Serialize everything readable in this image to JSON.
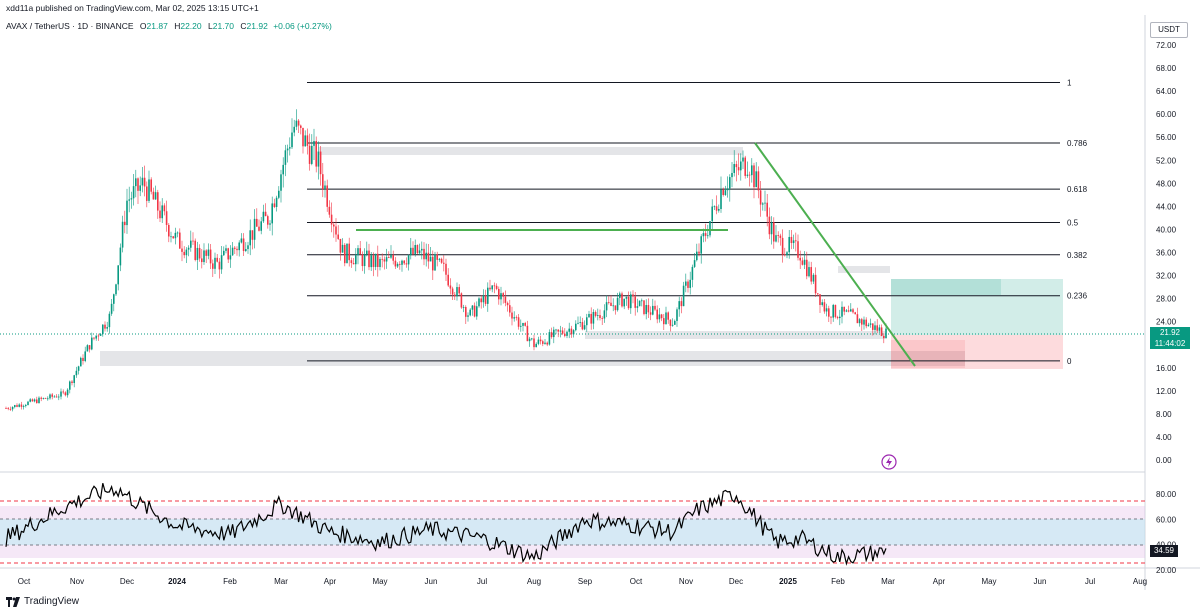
{
  "header": {
    "published": "xdd11a published on TradingView.com, Mar 02, 2025 13:15 UTC+1",
    "symbol": "AVAX / TetherUS · 1D · BINANCE",
    "o_label": "O",
    "o": "21.87",
    "h_label": "H",
    "h": "22.20",
    "l_label": "L",
    "l": "21.70",
    "c_label": "C",
    "c": "21.92",
    "change": "+0.06 (+0.27%)"
  },
  "price_axis": {
    "unit": "USDT",
    "ticks": [
      "72.00",
      "68.00",
      "64.00",
      "60.00",
      "56.00",
      "52.00",
      "48.00",
      "44.00",
      "40.00",
      "36.00",
      "32.00",
      "28.00",
      "24.00",
      "20.00",
      "16.00",
      "12.00",
      "8.00",
      "4.00",
      "0.00"
    ],
    "current_price": "21.92",
    "countdown": "11:44:02"
  },
  "rsi_axis": {
    "ticks": [
      "80.00",
      "60.00",
      "40.00",
      "20.00"
    ],
    "current": "34.59"
  },
  "time_axis": [
    "Oct",
    "Nov",
    "Dec",
    "2024",
    "Feb",
    "Mar",
    "Apr",
    "May",
    "Jun",
    "Jul",
    "Aug",
    "Sep",
    "Oct",
    "Nov",
    "Dec",
    "2025",
    "Feb",
    "Mar",
    "Apr",
    "May",
    "Jun",
    "Jul",
    "Aug"
  ],
  "footer": {
    "brand": "TradingView"
  },
  "colors": {
    "up": "#089981",
    "down": "#f23645",
    "trend": "#4caf50",
    "fib": "#131722",
    "rsi": "#000000"
  },
  "chart_data": {
    "type": "candlestick",
    "price_ylim": [
      0,
      72
    ],
    "fib_levels": [
      {
        "label": "1",
        "price": 65.5
      },
      {
        "label": "0.786",
        "price": 55.0
      },
      {
        "label": "0.618",
        "price": 47.0
      },
      {
        "label": "0.5",
        "price": 41.2
      },
      {
        "label": "0.382",
        "price": 35.6
      },
      {
        "label": "0.236",
        "price": 28.5
      },
      {
        "label": "0",
        "price": 17.2
      }
    ],
    "price_path": [
      [
        "Oct",
        9.0
      ],
      [
        "Nov",
        11.5
      ],
      [
        "Nov",
        20.0
      ],
      [
        "Dec",
        25.0
      ],
      [
        "Dec",
        45.0
      ],
      [
        "Dec",
        48.0
      ],
      [
        "2024",
        38.0
      ],
      [
        "Feb",
        34.0
      ],
      [
        "Feb",
        38.0
      ],
      [
        "Mar",
        42.0
      ],
      [
        "Mar",
        58.0
      ],
      [
        "Apr",
        52.0
      ],
      [
        "Apr",
        36.0
      ],
      [
        "May",
        34.0
      ],
      [
        "Jun",
        36.0
      ],
      [
        "Jun",
        33.0
      ],
      [
        "Jul",
        25.0
      ],
      [
        "Jul",
        30.0
      ],
      [
        "Aug",
        20.0
      ],
      [
        "Sep",
        24.0
      ],
      [
        "Oct",
        28.0
      ],
      [
        "Oct",
        26.0
      ],
      [
        "Nov",
        24.0
      ],
      [
        "Nov",
        36.0
      ],
      [
        "Dec",
        48.0
      ],
      [
        "Dec",
        52.0
      ],
      [
        "2025",
        38.0
      ],
      [
        "2025",
        36.0
      ],
      [
        "Feb",
        26.0
      ],
      [
        "Feb",
        25.0
      ],
      [
        "Mar",
        21.92
      ]
    ],
    "rsi_path": [
      [
        "Oct",
        45
      ],
      [
        "Nov",
        70
      ],
      [
        "Nov",
        78
      ],
      [
        "Dec",
        85
      ],
      [
        "Dec",
        72
      ],
      [
        "2024",
        55
      ],
      [
        "Feb",
        48
      ],
      [
        "Mar",
        72
      ],
      [
        "Apr",
        50
      ],
      [
        "May",
        42
      ],
      [
        "Jun",
        52
      ],
      [
        "Jul",
        45
      ],
      [
        "Aug",
        30
      ],
      [
        "Sep",
        60
      ],
      [
        "Oct",
        55
      ],
      [
        "Nov",
        50
      ],
      [
        "Nov",
        68
      ],
      [
        "Dec",
        80
      ],
      [
        "2025",
        42
      ],
      [
        "2025",
        45
      ],
      [
        "Feb",
        30
      ],
      [
        "Mar",
        34.59
      ]
    ],
    "rsi_levels": [
      70,
      50,
      30
    ]
  }
}
